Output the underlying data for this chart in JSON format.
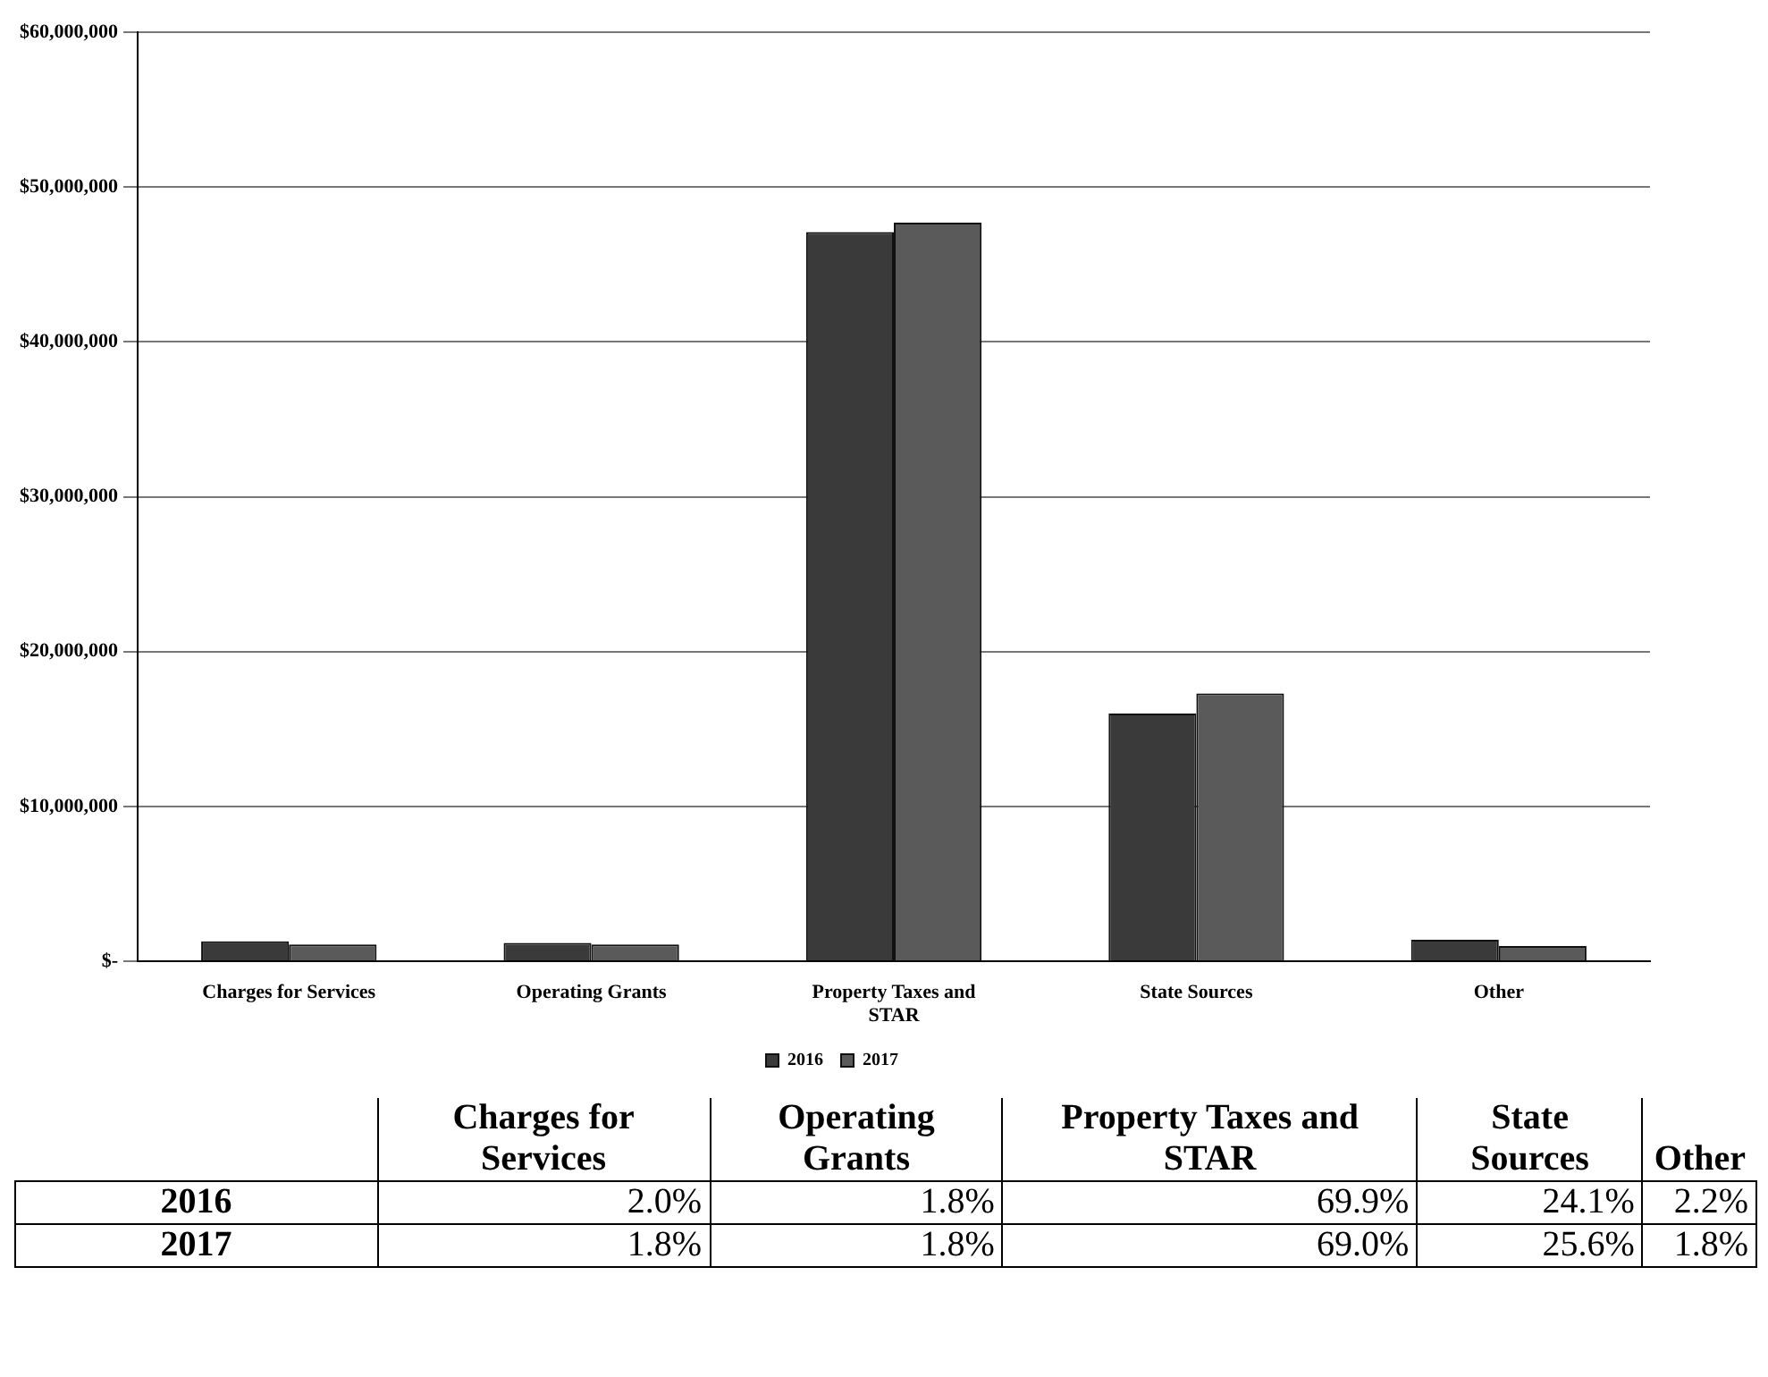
{
  "chart_data": {
    "type": "bar",
    "categories": [
      "Charges for Services",
      "Operating Grants",
      "Property Taxes and STAR",
      "State Sources",
      "Other"
    ],
    "series": [
      {
        "name": "2016",
        "color": "#3a3a3a",
        "values": [
          1300000,
          1200000,
          47100000,
          16000000,
          1400000
        ]
      },
      {
        "name": "2017",
        "color": "#5a5a5a",
        "values": [
          1100000,
          1100000,
          47700000,
          17300000,
          1000000
        ]
      }
    ],
    "ylim": [
      0,
      60000000
    ],
    "yticks": [
      {
        "value": 0,
        "label": "$-"
      },
      {
        "value": 10000000,
        "label": "$10,000,000"
      },
      {
        "value": 20000000,
        "label": "$20,000,000"
      },
      {
        "value": 30000000,
        "label": "$30,000,000"
      },
      {
        "value": 40000000,
        "label": "$40,000,000"
      },
      {
        "value": 50000000,
        "label": "$50,000,000"
      },
      {
        "value": 60000000,
        "label": "$60,000,000"
      }
    ],
    "grid": "y",
    "legend": "bottom",
    "annotations": [
      "2.0%",
      "1.8%",
      "69.9%",
      "24.1%",
      "2.2%",
      "1.8%",
      "1.8%",
      "69.0%",
      "25.6%",
      "1.8%"
    ]
  }
}
